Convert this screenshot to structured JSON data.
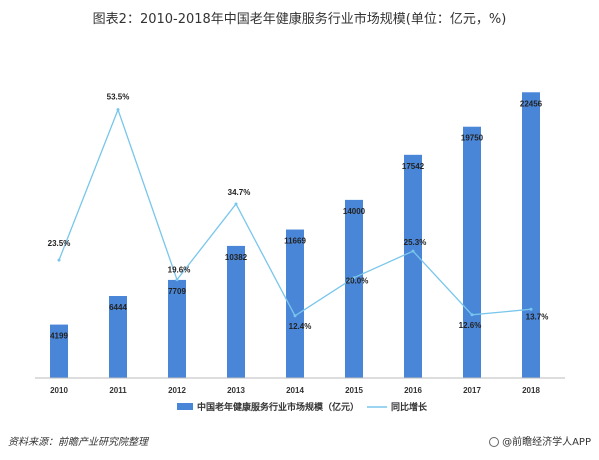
{
  "title": "图表2：2010-2018年中国老年健康服务行业市场规模(单位：亿元，%)",
  "source": "资料来源：前瞻产业研究院整理",
  "brand": "@前瞻经济学人APP",
  "colors": {
    "bar": "#4a86d8",
    "line": "#79c6ec"
  },
  "chart_data": {
    "type": "bar",
    "categories": [
      "2010",
      "2011",
      "2012",
      "2013",
      "2014",
      "2015",
      "2016",
      "2017",
      "2018"
    ],
    "series": [
      {
        "name": "中国老年健康服务行业市场规模（亿元）",
        "type": "bar",
        "values": [
          4199,
          6444,
          7709,
          10382,
          11669,
          14000,
          17542,
          19750,
          22456
        ],
        "labels": [
          "4199",
          "6444",
          "7709",
          "10382",
          "11669",
          "14000",
          "17542",
          "19750",
          "22456"
        ]
      },
      {
        "name": "同比增长",
        "type": "line",
        "values": [
          23.5,
          53.5,
          19.6,
          34.7,
          12.4,
          20.0,
          25.3,
          12.6,
          13.7
        ],
        "labels": [
          "23.5%",
          "53.5%",
          "19.6%",
          "34.7%",
          "12.4%",
          "20.0%",
          "25.3%",
          "12.6%",
          "13.7%"
        ]
      }
    ],
    "y_bar_range": [
      0,
      23500
    ],
    "y_line_range": [
      0,
      65
    ],
    "legend": "bottom",
    "grid": false
  }
}
